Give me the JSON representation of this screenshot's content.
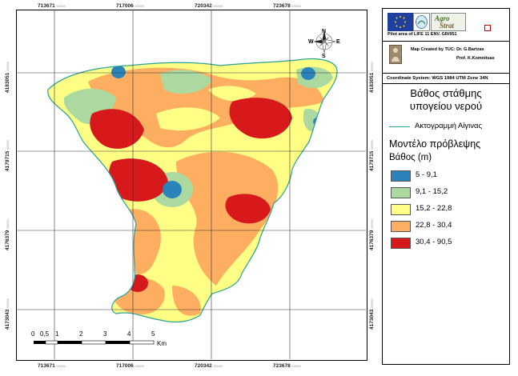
{
  "map": {
    "top_ticks": [
      {
        "value": "713671",
        "sub": "000000"
      },
      {
        "value": "717006",
        "sub": "000000"
      },
      {
        "value": "720342",
        "sub": "000000"
      },
      {
        "value": "723678",
        "sub": "000000"
      }
    ],
    "bottom_ticks": [
      {
        "value": "713671",
        "sub": "000000"
      },
      {
        "value": "717006",
        "sub": "000000"
      },
      {
        "value": "720342",
        "sub": "000000"
      },
      {
        "value": "723678",
        "sub": "000000"
      }
    ],
    "left_ticks": [
      {
        "value": "4183051",
        "sub": "000000"
      },
      {
        "value": "4179715",
        "sub": "000000"
      },
      {
        "value": "4176379",
        "sub": "000000"
      },
      {
        "value": "4173043",
        "sub": "000000"
      }
    ],
    "right_ticks": [
      {
        "value": "4183051",
        "sub": "000000"
      },
      {
        "value": "4179715",
        "sub": "000000"
      },
      {
        "value": "4176379",
        "sub": "000000"
      },
      {
        "value": "4173043",
        "sub": "000000"
      }
    ],
    "compass": {
      "n": "N",
      "s": "S",
      "e": "E",
      "w": "W"
    },
    "scale_bar": {
      "labels": [
        "0",
        "0,5",
        "1",
        "2",
        "3",
        "4",
        "5"
      ],
      "unit": "Km"
    }
  },
  "legend": {
    "logo_text_1": "Agro",
    "logo_text_2": "Strat",
    "pilot_area": "Pilot area of LIFE 11 ENV. GR/951",
    "created_by": "Map Created by TUC: Dr. G.Bartzas",
    "prof": "Prof. K.Komnitsas",
    "coord_system": "Coordinate System: WGS 1984 UTM Zone 34N",
    "title_line1": "Βάθος στάθμης",
    "title_line2": "υπογείου νερού",
    "coastline_label": "Ακτογραμμή Αίγινας",
    "model_title": "Μοντέλο πρόβλεψης",
    "depth_label": "Βάθος (m)",
    "classes": [
      {
        "label": "5 - 9,1",
        "color": "#2b83ba"
      },
      {
        "label": "9,1 - 15,2",
        "color": "#abd9a0"
      },
      {
        "label": "15,2 - 22,8",
        "color": "#ffff85"
      },
      {
        "label": "22,8 - 30,4",
        "color": "#fdae61"
      },
      {
        "label": "30,4 - 90,5",
        "color": "#d7191c"
      }
    ],
    "coastline_color": "#2aa198"
  }
}
